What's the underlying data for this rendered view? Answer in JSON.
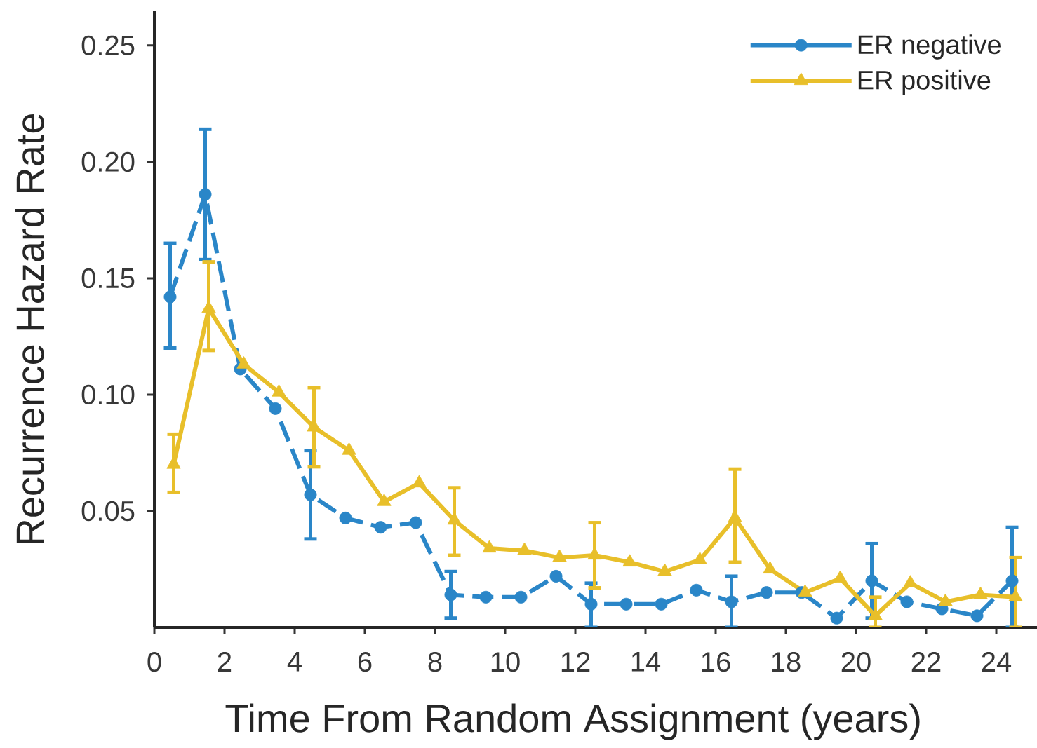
{
  "chart_data": {
    "type": "line",
    "xlabel": "Time From Random Assignment (years)",
    "ylabel": "Recurrence Hazard Rate",
    "xlim": [
      0,
      25.2
    ],
    "xticks": [
      0,
      2,
      4,
      6,
      8,
      10,
      12,
      14,
      16,
      18,
      20,
      22,
      24
    ],
    "ylim": [
      0,
      0.265
    ],
    "yticks": [
      {
        "value": 0.05,
        "label": "0.05"
      },
      {
        "value": 0.1,
        "label": "0.10"
      },
      {
        "value": 0.15,
        "label": "0.15"
      },
      {
        "value": 0.2,
        "label": "0.20"
      },
      {
        "value": 0.25,
        "label": "0.25"
      }
    ],
    "legend": "top right",
    "series": [
      {
        "name": "ER negative",
        "color": "#2a86c8",
        "marker": "circle",
        "line_style": "dashed",
        "x": [
          0.45,
          1.45,
          2.45,
          3.45,
          4.45,
          5.45,
          6.45,
          7.45,
          8.45,
          9.45,
          10.45,
          11.45,
          12.45,
          13.45,
          14.45,
          15.45,
          16.45,
          17.45,
          18.45,
          19.45,
          20.45,
          21.45,
          22.45,
          23.45,
          24.45
        ],
        "values": [
          0.142,
          0.186,
          0.111,
          0.094,
          0.057,
          0.047,
          0.043,
          0.045,
          0.014,
          0.013,
          0.013,
          0.022,
          0.01,
          0.01,
          0.01,
          0.016,
          0.011,
          0.015,
          0.015,
          0.004,
          0.02,
          0.011,
          0.008,
          0.005,
          0.02
        ],
        "errors": [
          [
            0.12,
            0.165
          ],
          [
            0.158,
            0.214
          ],
          null,
          null,
          [
            0.038,
            0.076
          ],
          null,
          null,
          null,
          [
            0.004,
            0.024
          ],
          null,
          null,
          null,
          [
            0,
            0.019
          ],
          null,
          null,
          null,
          [
            0,
            0.022
          ],
          null,
          null,
          null,
          [
            0.004,
            0.036
          ],
          null,
          null,
          null,
          [
            0,
            0.043
          ]
        ]
      },
      {
        "name": "ER positive",
        "color": "#e8bf2a",
        "marker": "triangle",
        "line_style": "solid",
        "x": [
          0.55,
          1.55,
          2.55,
          3.55,
          4.55,
          5.55,
          6.55,
          7.55,
          8.55,
          9.55,
          10.55,
          11.55,
          12.55,
          13.55,
          14.55,
          15.55,
          16.55,
          17.55,
          18.55,
          19.55,
          20.55,
          21.55,
          22.55,
          23.55,
          24.55
        ],
        "values": [
          0.07,
          0.137,
          0.113,
          0.101,
          0.086,
          0.076,
          0.054,
          0.062,
          0.046,
          0.034,
          0.033,
          0.03,
          0.031,
          0.028,
          0.024,
          0.029,
          0.047,
          0.025,
          0.015,
          0.021,
          0.005,
          0.019,
          0.011,
          0.014,
          0.013
        ],
        "errors": [
          [
            0.058,
            0.083
          ],
          [
            0.119,
            0.157
          ],
          null,
          null,
          [
            0.069,
            0.103
          ],
          null,
          null,
          null,
          [
            0.031,
            0.06
          ],
          null,
          null,
          null,
          [
            0.017,
            0.045
          ],
          null,
          null,
          null,
          [
            0.028,
            0.068
          ],
          null,
          null,
          null,
          [
            0,
            0.013
          ],
          null,
          null,
          null,
          [
            0,
            0.03
          ]
        ]
      }
    ]
  }
}
